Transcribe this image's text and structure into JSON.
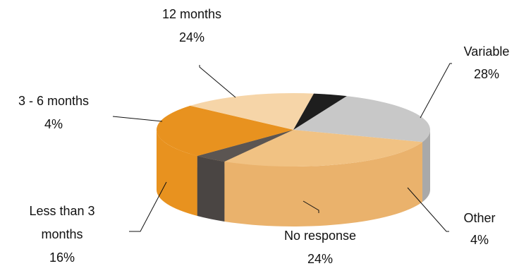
{
  "chart_data": {
    "type": "pie",
    "title": "",
    "slices": [
      {
        "label": "12 months",
        "value": 24,
        "display": "24%",
        "color": "#c8c8c8",
        "side_color": "#a9a9a9"
      },
      {
        "label": "Variable",
        "value": 28,
        "display": "28%",
        "color": "#f1c283",
        "side_color": "#eab26c"
      },
      {
        "label": "Other",
        "value": 4,
        "display": "4%",
        "color": "#5b5552",
        "side_color": "#4a4543"
      },
      {
        "label": "No response",
        "value": 24,
        "display": "24%",
        "color": "#e8921f",
        "side_color": "#e8921f"
      },
      {
        "label": "Less than 3",
        "label2": "months",
        "value": 16,
        "display": "16%",
        "color": "#f6d5a8",
        "side_color": "#f0c183"
      },
      {
        "label": "3 - 6 months",
        "value": 4,
        "display": "4%",
        "color": "#1e1e1e",
        "side_color": "#111111"
      }
    ],
    "legend": "none",
    "style": "3d-pie"
  }
}
